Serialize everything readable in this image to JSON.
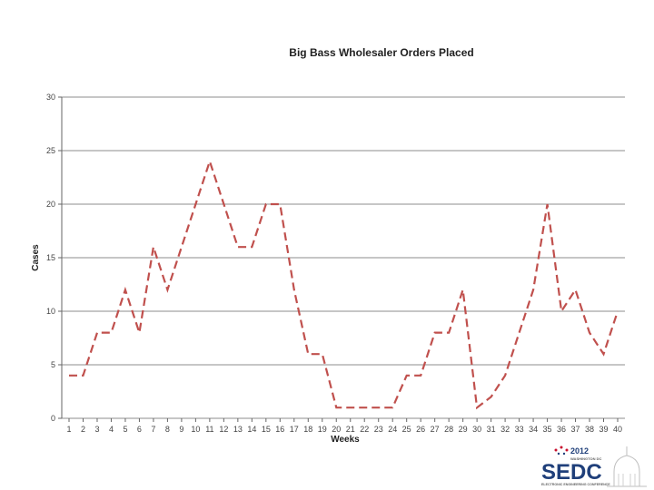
{
  "chart_data": {
    "type": "line",
    "title": "Big Bass Wholesaler Orders Placed",
    "xlabel": "Weeks",
    "ylabel": "Cases",
    "x": [
      1,
      2,
      3,
      4,
      5,
      6,
      7,
      8,
      9,
      10,
      11,
      12,
      13,
      14,
      15,
      16,
      17,
      18,
      19,
      20,
      21,
      22,
      23,
      24,
      25,
      26,
      27,
      28,
      29,
      30,
      31,
      32,
      33,
      34,
      35,
      36,
      37,
      38,
      39,
      40
    ],
    "series": [
      {
        "values": [
          4,
          4,
          8,
          8,
          12,
          8,
          16,
          12,
          16,
          20,
          24,
          20,
          16,
          16,
          20,
          20,
          12,
          6,
          6,
          1,
          1,
          1,
          1,
          1,
          4,
          4,
          8,
          8,
          12,
          1,
          2,
          4,
          8,
          12,
          20,
          10,
          12,
          8,
          6,
          10
        ],
        "color": "#c0504d",
        "style": "dashed"
      }
    ],
    "ylim": [
      0,
      30
    ],
    "yticks": [
      0,
      5,
      10,
      15,
      20,
      25,
      30
    ],
    "grid": true
  },
  "logo": {
    "year": "2012",
    "city": "WASHINGTON DC",
    "name": "SEDC",
    "tagline": "ELECTRONIC ENGINEERING CONFERENCE"
  },
  "colors": {
    "line": "#c0504d",
    "grid": "#8c8c8c",
    "logo_blue": "#1f3f7a",
    "logo_red": "#c8102e"
  }
}
